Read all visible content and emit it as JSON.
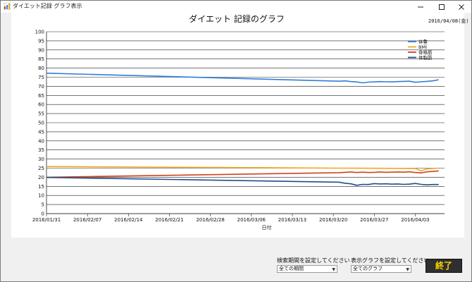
{
  "window": {
    "title": "ダイエット記録 グラフ表示"
  },
  "chart_title": "ダイエット 記録のグラフ",
  "current_date": "2016/04/08(金)",
  "controls": {
    "period_label": "検索期間を設定してください",
    "period_value": "全ての期間",
    "graph_label": "表示グラフを設定してください",
    "graph_value": "全てのグラフ",
    "end_button": "終了"
  },
  "chart_data": {
    "type": "line",
    "title": "",
    "xlabel": "日付",
    "ylabel": "",
    "ylim": [
      0,
      100
    ],
    "xlim": [
      "2016/01/31",
      "2016/04/08"
    ],
    "y_ticks": [
      0,
      5,
      10,
      15,
      20,
      25,
      30,
      35,
      40,
      45,
      50,
      55,
      60,
      65,
      70,
      75,
      80,
      85,
      90,
      95,
      100
    ],
    "x_ticks": [
      "2016/01/31",
      "2016/02/07",
      "2016/02/14",
      "2016/02/21",
      "2016/02/28",
      "2016/03/06",
      "2016/03/13",
      "2016/03/20",
      "2016/03/27",
      "2016/04/03"
    ],
    "grid": true,
    "legend": "top-right",
    "series": [
      {
        "name": "体重",
        "color": "#2f7ed8",
        "points": [
          [
            "2016/01/31",
            77.2
          ],
          [
            "2016/03/21",
            72.8
          ],
          [
            "2016/03/22",
            73.0
          ],
          [
            "2016/03/23",
            72.6
          ],
          [
            "2016/03/24",
            72.4
          ],
          [
            "2016/03/25",
            71.9
          ],
          [
            "2016/03/26",
            72.3
          ],
          [
            "2016/03/27",
            72.4
          ],
          [
            "2016/03/28",
            72.6
          ],
          [
            "2016/03/29",
            72.5
          ],
          [
            "2016/03/30",
            72.4
          ],
          [
            "2016/03/31",
            72.6
          ],
          [
            "2016/04/01",
            72.7
          ],
          [
            "2016/04/02",
            72.8
          ],
          [
            "2016/04/03",
            72.2
          ],
          [
            "2016/04/04",
            72.5
          ],
          [
            "2016/04/05",
            72.7
          ],
          [
            "2016/04/06",
            73.0
          ],
          [
            "2016/04/07",
            73.6
          ]
        ]
      },
      {
        "name": "BMI",
        "color": "#f4a71d",
        "points": [
          [
            "2016/01/31",
            25.9
          ],
          [
            "2016/03/21",
            25.0
          ],
          [
            "2016/03/31",
            24.9
          ],
          [
            "2016/04/03",
            24.8
          ],
          [
            "2016/04/04",
            23.5
          ],
          [
            "2016/04/05",
            24.6
          ],
          [
            "2016/04/06",
            24.8
          ],
          [
            "2016/04/07",
            25.0
          ]
        ]
      },
      {
        "name": "骨格筋",
        "color": "#d2411e",
        "points": [
          [
            "2016/01/31",
            20.0
          ],
          [
            "2016/03/21",
            22.5
          ],
          [
            "2016/03/22",
            22.7
          ],
          [
            "2016/03/23",
            22.9
          ],
          [
            "2016/03/24",
            22.6
          ],
          [
            "2016/03/25",
            22.8
          ],
          [
            "2016/03/26",
            22.6
          ],
          [
            "2016/03/27",
            22.7
          ],
          [
            "2016/03/28",
            22.9
          ],
          [
            "2016/03/29",
            22.7
          ],
          [
            "2016/03/30",
            22.8
          ],
          [
            "2016/03/31",
            22.9
          ],
          [
            "2016/04/01",
            22.8
          ],
          [
            "2016/04/02",
            23.0
          ],
          [
            "2016/04/03",
            22.6
          ],
          [
            "2016/04/04",
            22.4
          ],
          [
            "2016/04/05",
            23.0
          ],
          [
            "2016/04/06",
            23.2
          ],
          [
            "2016/04/07",
            23.5
          ]
        ]
      },
      {
        "name": "体脂肪",
        "color": "#1f4e8c",
        "points": [
          [
            "2016/01/31",
            19.9
          ],
          [
            "2016/03/21",
            17.3
          ],
          [
            "2016/03/22",
            16.7
          ],
          [
            "2016/03/23",
            16.4
          ],
          [
            "2016/03/24",
            15.6
          ],
          [
            "2016/03/25",
            16.1
          ],
          [
            "2016/03/26",
            16.0
          ],
          [
            "2016/03/27",
            16.5
          ],
          [
            "2016/03/28",
            16.3
          ],
          [
            "2016/03/29",
            16.4
          ],
          [
            "2016/03/30",
            16.2
          ],
          [
            "2016/03/31",
            16.3
          ],
          [
            "2016/04/01",
            16.1
          ],
          [
            "2016/04/02",
            16.2
          ],
          [
            "2016/04/03",
            16.6
          ],
          [
            "2016/04/04",
            16.1
          ],
          [
            "2016/04/05",
            15.8
          ],
          [
            "2016/04/06",
            16.0
          ],
          [
            "2016/04/07",
            16.0
          ]
        ]
      }
    ]
  }
}
